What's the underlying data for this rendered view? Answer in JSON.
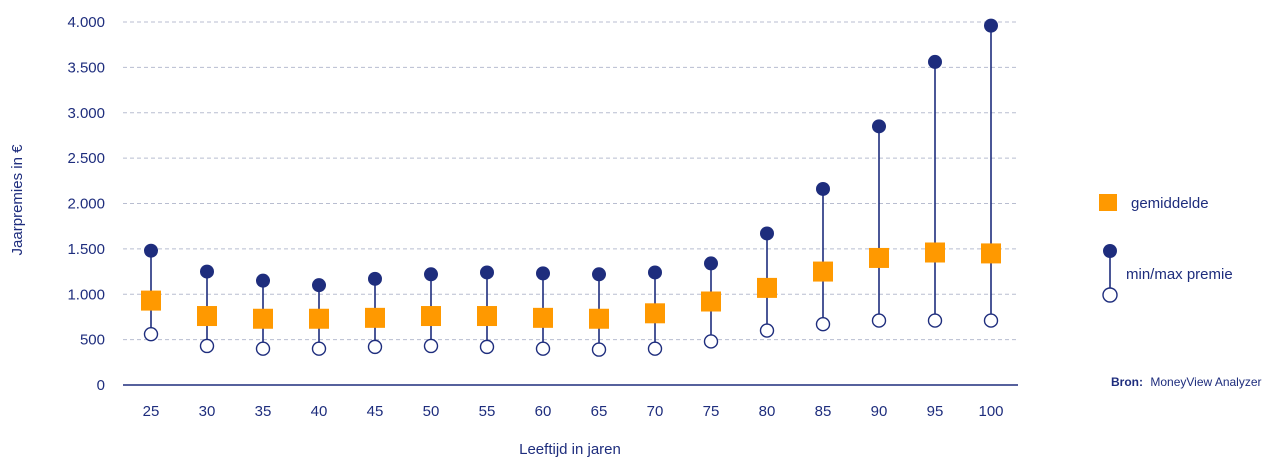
{
  "chart_data": {
    "type": "scatter",
    "xlabel": "Leeftijd in jaren",
    "ylabel": "Jaarpremies in €",
    "ylim": [
      0,
      4000
    ],
    "yticks": [
      0,
      500,
      1000,
      1500,
      2000,
      2500,
      3000,
      3500,
      4000
    ],
    "ytick_labels": [
      "0",
      "500",
      "1.000",
      "1.500",
      "2.000",
      "2.500",
      "3.000",
      "3.500",
      "4.000"
    ],
    "categories": [
      "25",
      "30",
      "35",
      "40",
      "45",
      "50",
      "55",
      "60",
      "65",
      "70",
      "75",
      "80",
      "85",
      "90",
      "95",
      "100"
    ],
    "series": [
      {
        "name": "gemiddelde",
        "values": [
          930,
          760,
          730,
          730,
          740,
          760,
          760,
          740,
          730,
          790,
          920,
          1070,
          1250,
          1400,
          1460,
          1450
        ]
      },
      {
        "name": "max",
        "values": [
          1480,
          1250,
          1150,
          1100,
          1170,
          1220,
          1240,
          1230,
          1220,
          1240,
          1340,
          1670,
          2160,
          2850,
          3560,
          3960
        ]
      },
      {
        "name": "min",
        "values": [
          560,
          430,
          400,
          400,
          420,
          430,
          420,
          400,
          390,
          400,
          480,
          600,
          670,
          710,
          710,
          710
        ]
      }
    ],
    "grid": true,
    "legend": [
      {
        "label": "gemiddelde",
        "symbol": "square"
      },
      {
        "label": "min/max premie",
        "symbol": "range"
      }
    ],
    "legend_position": "right",
    "colors": {
      "average": "#ff9900",
      "range": "#1e2d7d",
      "grid": "#b8bdd0"
    }
  },
  "source": {
    "label": "Bron:",
    "text": "MoneyView Analyzer"
  }
}
